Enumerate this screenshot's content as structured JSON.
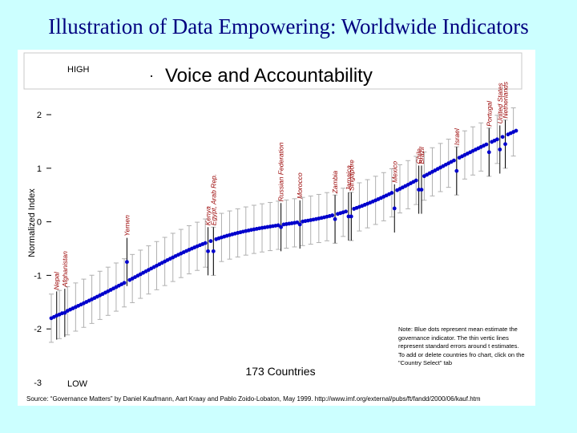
{
  "slide": {
    "title": "Illustration of Data Empowering: Worldwide Indicators",
    "source": "Source: “Governance Matters” by Daniel Kaufmann, Aart Kraay and Pablo Zoido-Lobaton, May 1999. http://www.imf.org/external/pubs/ft/fandd/2000/06/kauf.htm"
  },
  "colors": {
    "background": "#ccffff",
    "title": "#000080",
    "points": "#0000cc",
    "error_bars": "#b0b0b0",
    "labels": "#990000"
  },
  "chart_data": {
    "type": "scatter",
    "title": "Voice and Accountability",
    "bullet": "·",
    "ylabel": "Normalized Index",
    "high_label": "HIGH",
    "low_label": "LOW",
    "count_label": "173 Countries",
    "n_countries": 173,
    "y_range": [
      -3,
      2
    ],
    "y_ticks": [
      2,
      1,
      0,
      -1,
      -2,
      -3
    ],
    "grid": false,
    "legend": "none",
    "value_range": [
      -1.8,
      1.7
    ],
    "error_bar_half_width": 0.45,
    "note": "Note: Blue dots represent mean estimate the governance indicator. The thin vertic lines represent standard errors around t estimates. To add or delete countries fro chart, click on the \"Country Select\" tab",
    "labeled_countries": [
      {
        "name": "Afghanistan",
        "rank": 5,
        "value": -1.7
      },
      {
        "name": "Nepal",
        "rank": 2,
        "value": -1.75
      },
      {
        "name": "Yemen",
        "rank": 28,
        "value": -0.75
      },
      {
        "name": "Kenya",
        "rank": 58,
        "value": -0.55
      },
      {
        "name": "Egypt, Arab Rep.",
        "rank": 60,
        "value": -0.55
      },
      {
        "name": "Russian Federation",
        "rank": 85,
        "value": -0.1
      },
      {
        "name": "Morocco",
        "rank": 92,
        "value": -0.05
      },
      {
        "name": "Zambia",
        "rank": 105,
        "value": 0.05
      },
      {
        "name": "Jamaica",
        "rank": 110,
        "value": 0.1
      },
      {
        "name": "Singapore",
        "rank": 111,
        "value": 0.1
      },
      {
        "name": "Mexico",
        "rank": 127,
        "value": 0.25
      },
      {
        "name": "Chile",
        "rank": 136,
        "value": 0.6
      },
      {
        "name": "Brazil",
        "rank": 137,
        "value": 0.6
      },
      {
        "name": "Israel",
        "rank": 150,
        "value": 0.95
      },
      {
        "name": "Portugal",
        "rank": 162,
        "value": 1.3
      },
      {
        "name": "United States",
        "rank": 166,
        "value": 1.35
      },
      {
        "name": "Netherlands",
        "rank": 168,
        "value": 1.45
      }
    ]
  }
}
